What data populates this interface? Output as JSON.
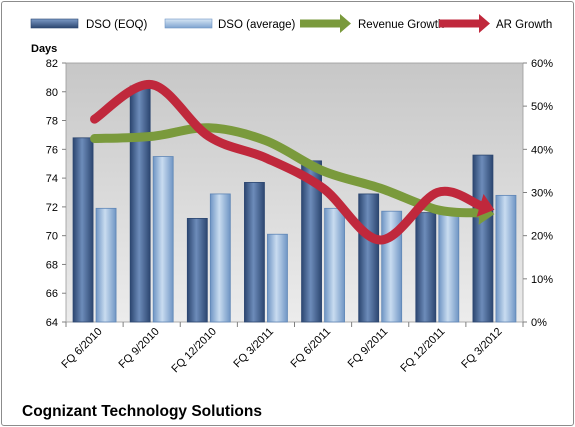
{
  "chart_data": {
    "type": "bar",
    "title": "Cognizant Technology Solutions",
    "ylabel": "Days",
    "categories": [
      "FQ 6/2010",
      "FQ 9/2010",
      "FQ 12/2010",
      "FQ 3/2011",
      "FQ 6/2011",
      "FQ 9/2011",
      "FQ 12/2011",
      "FQ 3/2012"
    ],
    "series": [
      {
        "name": "DSO (EOQ)",
        "type": "bar",
        "axis": "left",
        "color": "#3f5f8f",
        "values": [
          76.8,
          80.4,
          71.2,
          73.7,
          75.2,
          72.9,
          71.6,
          75.6
        ]
      },
      {
        "name": "DSO (average)",
        "type": "bar",
        "axis": "left",
        "color": "#8eb2da",
        "values": [
          71.9,
          75.5,
          72.9,
          70.1,
          71.9,
          71.7,
          71.5,
          72.8
        ]
      },
      {
        "name": "Revenue Growth",
        "type": "line",
        "axis": "right",
        "color": "#7a9a3c",
        "values": [
          42.5,
          43,
          45,
          42,
          35,
          31,
          26,
          25
        ]
      },
      {
        "name": "AR Growth",
        "type": "line",
        "axis": "right",
        "color": "#c0283c",
        "values": [
          47,
          55,
          43,
          38,
          31,
          19,
          30,
          26
        ]
      }
    ],
    "ylim": [
      64,
      82
    ],
    "yticks": [
      "64",
      "66",
      "68",
      "70",
      "72",
      "74",
      "76",
      "78",
      "80",
      "82"
    ],
    "y2lim": [
      0,
      60
    ],
    "y2ticks": [
      "0%",
      "10%",
      "20%",
      "30%",
      "40%",
      "50%",
      "60%"
    ],
    "grid": false,
    "legend": "top"
  }
}
